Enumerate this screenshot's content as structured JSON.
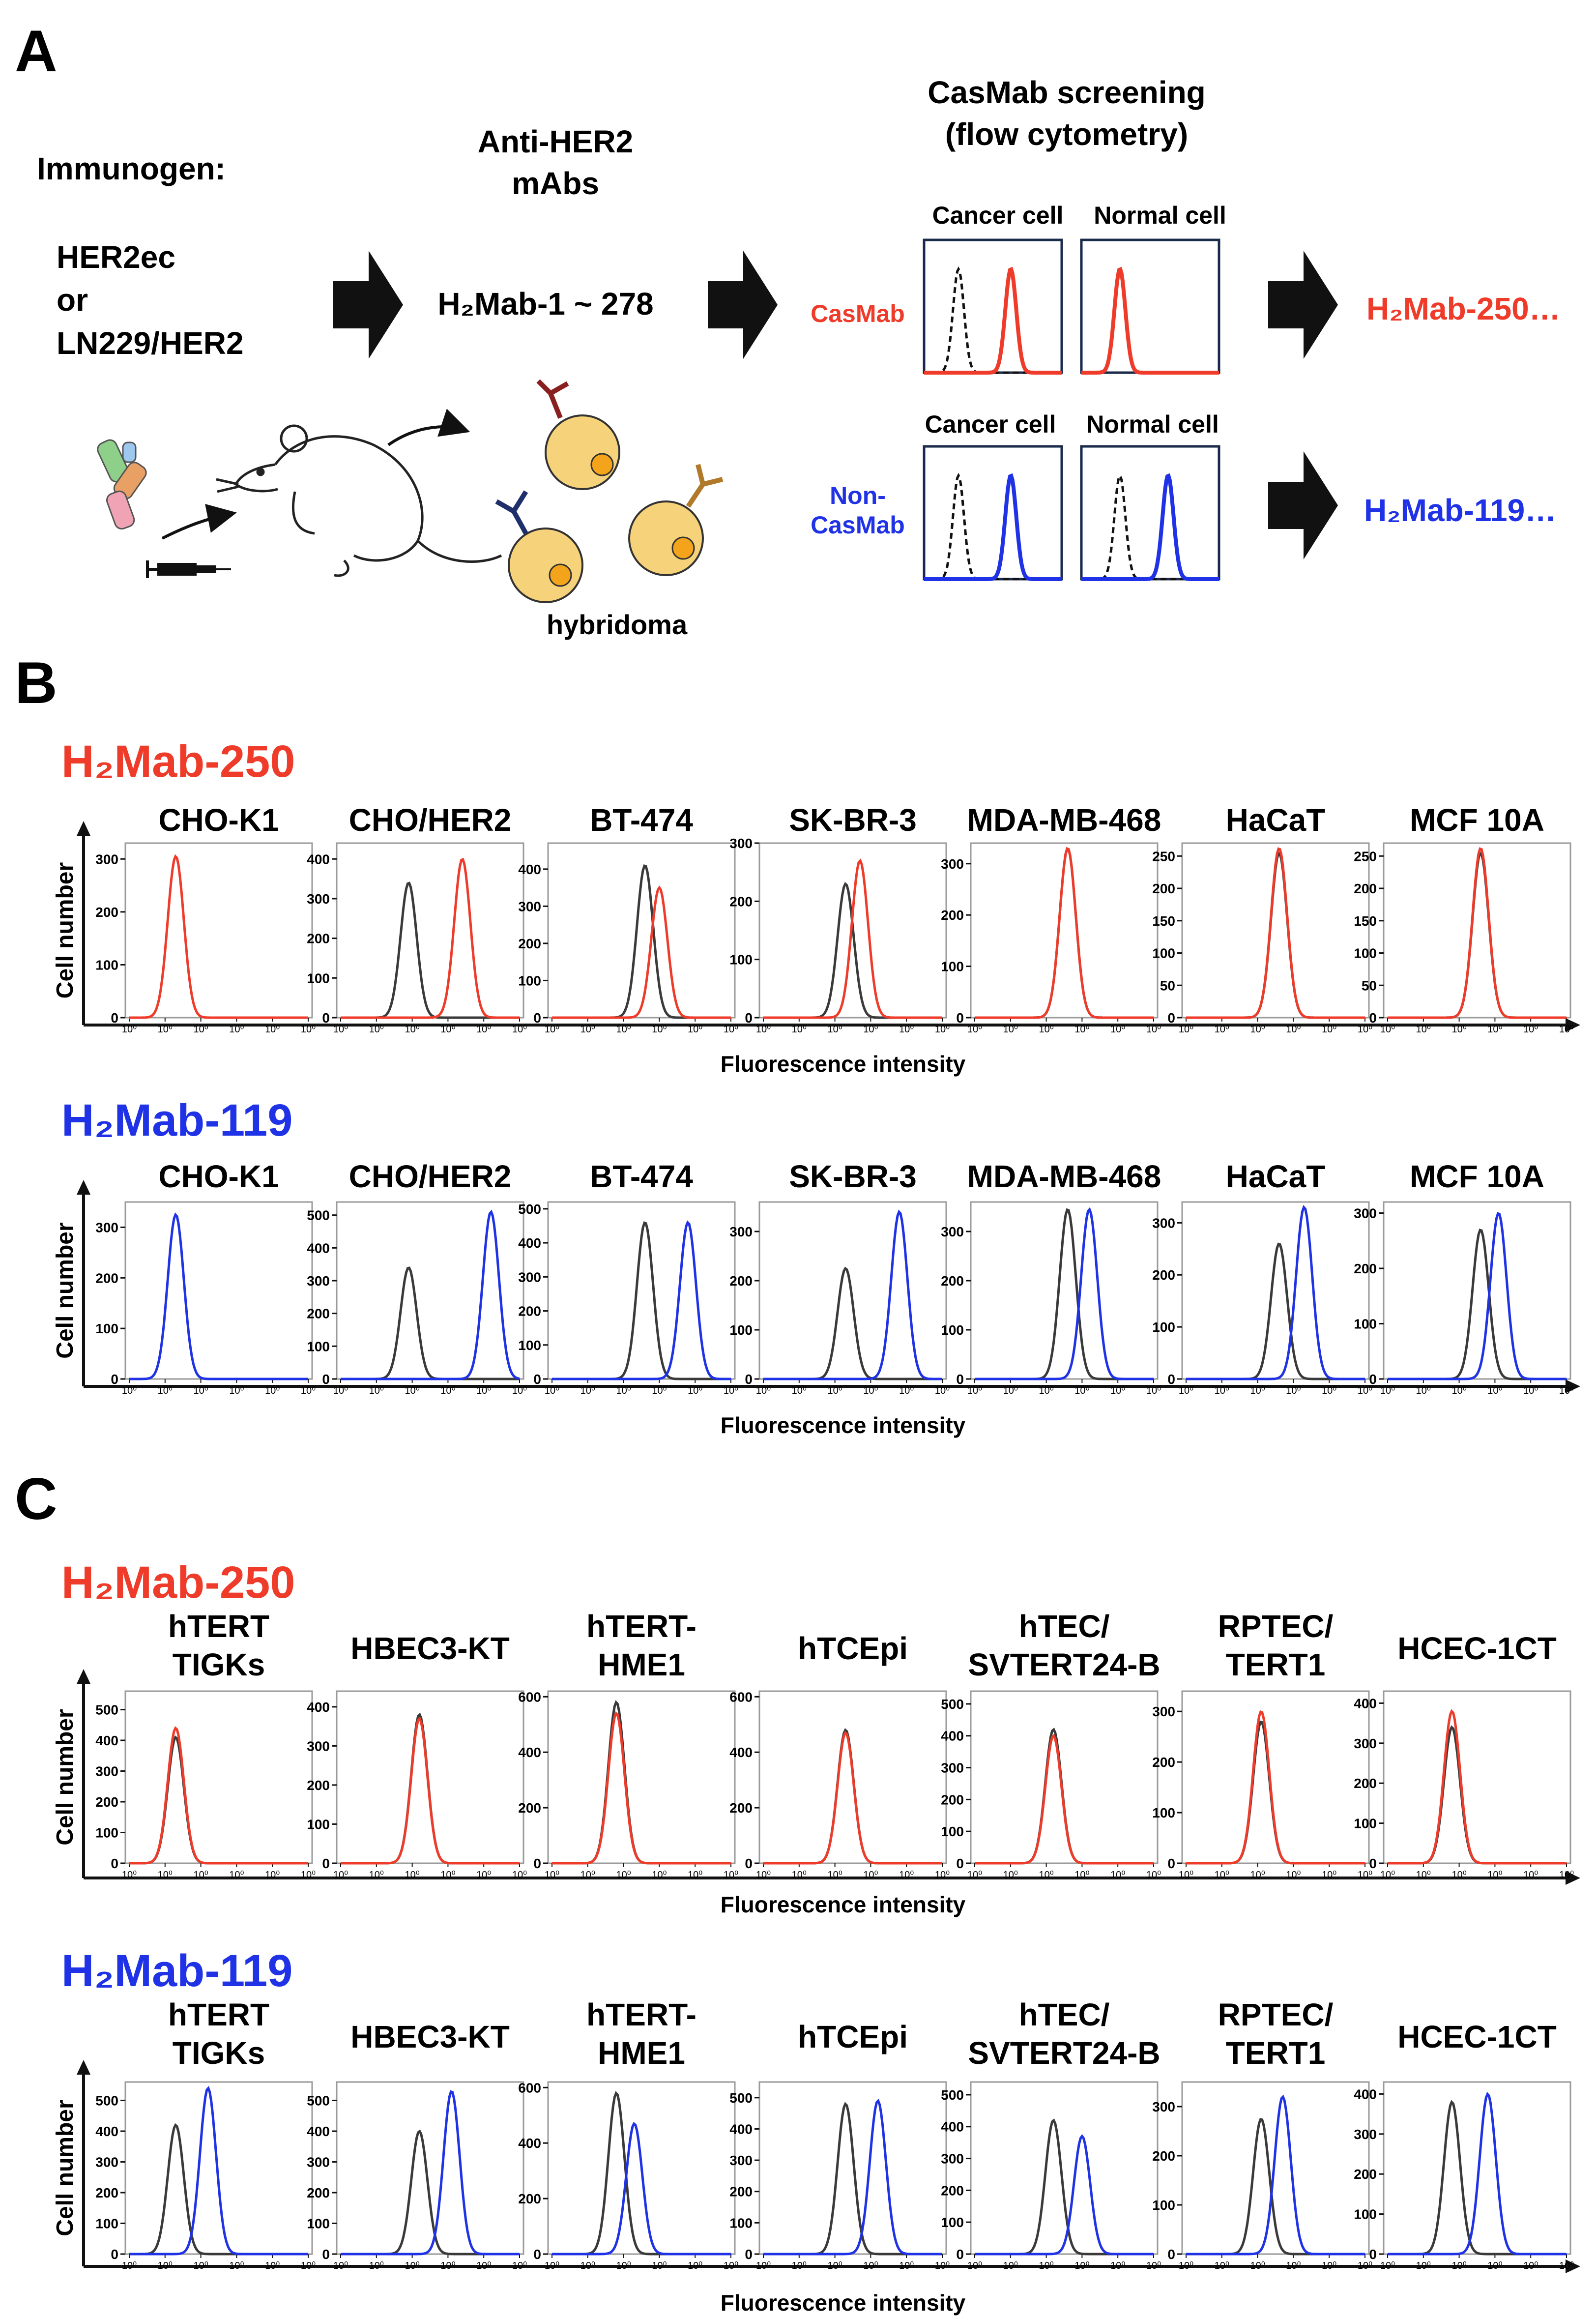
{
  "colors": {
    "red": "#ee3b2a",
    "blue": "#1f32e6",
    "gray": "#3a3a3a",
    "black": "#111111",
    "cell_fill": "#f6d27b",
    "nucleus_fill": "#f3a41b"
  },
  "panelA": {
    "letter": "A",
    "immunogen_label": "Immunogen:",
    "immunogen_line1": "HER2ec",
    "immunogen_line2": "or",
    "immunogen_line3": "LN229/HER2",
    "mabs_line1": "Anti-HER2",
    "mabs_line2": "mAbs",
    "range_text": "H₂Mab-1 ~ 278",
    "hybridoma": "hybridoma",
    "screen_line1": "CasMab screening",
    "screen_line2": "(flow cytometry)",
    "cancer_cell": "Cancer cell",
    "normal_cell": "Normal cell",
    "casmab": "CasMab",
    "noncasmab_line1": "Non-",
    "noncasmab_line2": "CasMab",
    "result_casmab": "H₂Mab-250…",
    "result_noncasmab": "H₂Mab-119…"
  },
  "panelB": {
    "letter": "B",
    "ylabel": "Cell number",
    "xlabel": "Fluorescence intensity",
    "rows": [
      {
        "antibody": "H₂Mab-250",
        "color": "red",
        "cells": [
          "CHO-K1",
          "CHO/HER2",
          "BT-474",
          "SK-BR-3",
          "MDA-MB-468",
          "HaCaT",
          "MCF 10A"
        ],
        "yticks": [
          [
            0,
            100,
            200,
            300
          ],
          [
            0,
            100,
            200,
            300,
            400
          ],
          [
            0,
            100,
            200,
            300,
            400
          ],
          [
            0,
            100,
            200,
            300
          ],
          [
            0,
            100,
            200,
            300
          ],
          [
            0,
            50,
            100,
            150,
            200,
            250
          ],
          [
            0,
            50,
            100,
            150,
            200,
            250
          ]
        ],
        "ymax": [
          330,
          440,
          470,
          300,
          340,
          270,
          270
        ],
        "control_peak": [
          null,
          1.9,
          2.6,
          2.3,
          2.6,
          2.6,
          2.6
        ],
        "control_height": [
          null,
          340,
          410,
          230,
          330,
          255,
          255
        ],
        "sample_peak": [
          1.3,
          3.4,
          3.0,
          2.7,
          2.6,
          2.6,
          2.6
        ],
        "sample_height": [
          305,
          400,
          350,
          270,
          330,
          262,
          262
        ]
      },
      {
        "antibody": "H₂Mab-119",
        "color": "blue",
        "cells": [
          "CHO-K1",
          "CHO/HER2",
          "BT-474",
          "SK-BR-3",
          "MDA-MB-468",
          "HaCaT",
          "MCF 10A"
        ],
        "yticks": [
          [
            0,
            100,
            200,
            300
          ],
          [
            0,
            100,
            200,
            300,
            400,
            500
          ],
          [
            0,
            100,
            200,
            300,
            400,
            500
          ],
          [
            0,
            100,
            200,
            300
          ],
          [
            0,
            100,
            200,
            300
          ],
          [
            0,
            100,
            200,
            300
          ],
          [
            0,
            100,
            200,
            300
          ]
        ],
        "ymax": [
          350,
          540,
          520,
          360,
          360,
          340,
          320
        ],
        "control_peak": [
          null,
          1.9,
          2.6,
          2.3,
          2.6,
          2.6,
          2.6
        ],
        "control_height": [
          null,
          340,
          460,
          225,
          345,
          260,
          270
        ],
        "sample_peak": [
          1.3,
          4.2,
          3.8,
          3.8,
          3.2,
          3.3,
          3.1
        ],
        "sample_height": [
          325,
          510,
          460,
          340,
          345,
          330,
          300
        ]
      }
    ]
  },
  "panelC": {
    "letter": "C",
    "ylabel": "Cell number",
    "xlabel": "Fluorescence intensity",
    "rows": [
      {
        "antibody": "H₂Mab-250",
        "color": "red",
        "cells": [
          [
            "hTERT",
            "TIGKs"
          ],
          [
            "HBEC3-KT"
          ],
          [
            "hTERT-",
            "HME1"
          ],
          [
            "hTCEpi"
          ],
          [
            "hTEC/",
            "SVTERT24-B"
          ],
          [
            "RPTEC/",
            "TERT1"
          ],
          [
            "HCEC-1CT"
          ]
        ],
        "yticks": [
          [
            0,
            100,
            200,
            300,
            400,
            500
          ],
          [
            0,
            100,
            200,
            300,
            400
          ],
          [
            0,
            200,
            400,
            600
          ],
          [
            0,
            200,
            400,
            600
          ],
          [
            0,
            100,
            200,
            300,
            400,
            500
          ],
          [
            0,
            100,
            200,
            300
          ],
          [
            0,
            100,
            200,
            300,
            400
          ]
        ],
        "ymax": [
          560,
          440,
          620,
          620,
          540,
          340,
          430
        ],
        "control_peak": [
          1.3,
          2.2,
          1.8,
          2.3,
          2.2,
          2.1,
          1.8
        ],
        "control_height": [
          410,
          380,
          580,
          480,
          420,
          280,
          340
        ],
        "sample_peak": [
          1.3,
          2.2,
          1.8,
          2.3,
          2.2,
          2.1,
          1.8
        ],
        "sample_height": [
          440,
          370,
          540,
          470,
          400,
          300,
          380
        ]
      },
      {
        "antibody": "H₂Mab-119",
        "color": "blue",
        "cells": [
          [
            "hTERT",
            "TIGKs"
          ],
          [
            "HBEC3-KT"
          ],
          [
            "hTERT-",
            "HME1"
          ],
          [
            "hTCEpi"
          ],
          [
            "hTEC/",
            "SVTERT24-B"
          ],
          [
            "RPTEC/",
            "TERT1"
          ],
          [
            "HCEC-1CT"
          ]
        ],
        "yticks": [
          [
            0,
            100,
            200,
            300,
            400,
            500
          ],
          [
            0,
            100,
            200,
            300,
            400,
            500
          ],
          [
            0,
            200,
            400,
            600
          ],
          [
            0,
            100,
            200,
            300,
            400,
            500
          ],
          [
            0,
            100,
            200,
            300,
            400,
            500
          ],
          [
            0,
            100,
            200,
            300
          ],
          [
            0,
            100,
            200,
            300,
            400
          ]
        ],
        "ymax": [
          560,
          560,
          620,
          550,
          540,
          350,
          430
        ],
        "control_peak": [
          1.3,
          2.2,
          1.8,
          2.3,
          2.2,
          2.1,
          1.8
        ],
        "control_height": [
          420,
          400,
          580,
          480,
          420,
          275,
          380
        ],
        "sample_peak": [
          2.2,
          3.1,
          2.3,
          3.2,
          3.0,
          2.7,
          2.8
        ],
        "sample_height": [
          540,
          530,
          470,
          490,
          370,
          320,
          400
        ]
      }
    ]
  },
  "xtick_label": "10⁰"
}
